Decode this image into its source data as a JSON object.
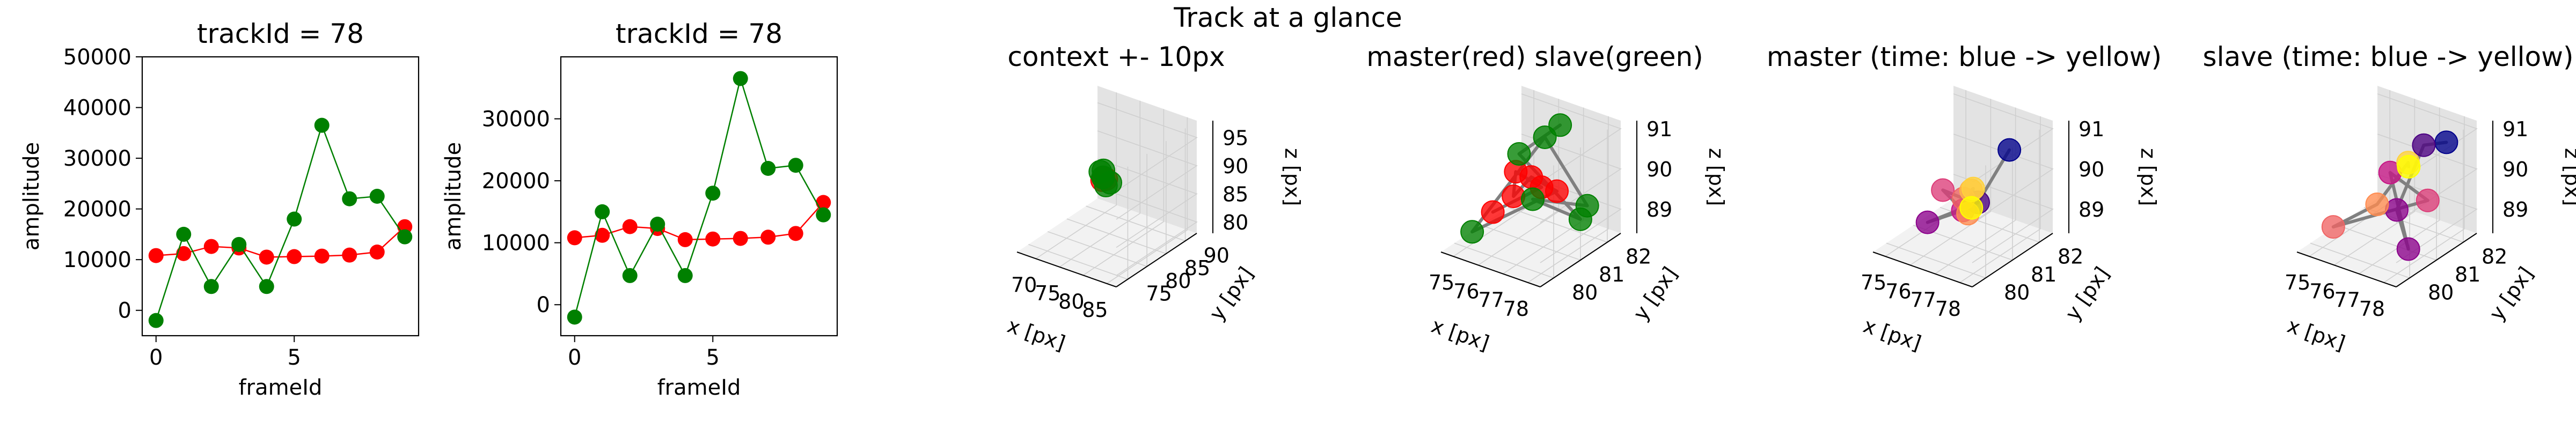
{
  "figure": {
    "suptitle": "Track at a glance"
  },
  "chart_data": [
    {
      "type": "line",
      "title": "trackId = 78",
      "xlabel": "frameId",
      "ylabel": "amplitude",
      "xlim": [
        -0.5,
        9.5
      ],
      "ylim": [
        -5000,
        50000
      ],
      "xticks": [
        0,
        5
      ],
      "yticks": [
        0,
        10000,
        20000,
        30000,
        40000,
        50000
      ],
      "x": [
        0,
        1,
        2,
        3,
        4,
        5,
        6,
        7,
        8,
        9
      ],
      "series": [
        {
          "color": "#ff0000",
          "values": [
            10800,
            11200,
            12600,
            12300,
            10500,
            10600,
            10700,
            10900,
            11500,
            16500
          ]
        },
        {
          "color": "#008000",
          "values": [
            -2000,
            15000,
            4700,
            13000,
            4700,
            18000,
            36500,
            22000,
            22500,
            14500
          ]
        }
      ]
    },
    {
      "type": "line",
      "title": "trackId = 78",
      "xlabel": "frameId",
      "ylabel": "amplitude",
      "xlim": [
        -0.5,
        9.5
      ],
      "ylim": [
        -5000,
        40000
      ],
      "xticks": [
        0,
        5
      ],
      "yticks": [
        0,
        10000,
        20000,
        30000
      ],
      "x": [
        0,
        1,
        2,
        3,
        4,
        5,
        6,
        7,
        8,
        9
      ],
      "series": [
        {
          "color": "#ff0000",
          "values": [
            10800,
            11200,
            12600,
            12300,
            10500,
            10600,
            10700,
            10900,
            11500,
            16500
          ]
        },
        {
          "color": "#008000",
          "values": [
            -2000,
            15000,
            4700,
            13000,
            4700,
            18000,
            36500,
            22000,
            22500,
            14500
          ]
        }
      ]
    },
    {
      "type": "scatter3d",
      "title": "context +- 10px",
      "xlabel": "x [px]",
      "ylabel": "y [px]",
      "zlabel": "z [px]",
      "xlim": [
        66,
        87
      ],
      "ylim": [
        72,
        93
      ],
      "zlim": [
        78,
        98
      ],
      "xticks": [
        70,
        75,
        80,
        85
      ],
      "yticks": [
        75,
        80,
        85,
        90
      ],
      "zticks": [
        80,
        85,
        90,
        95
      ],
      "path_color": "#808080",
      "points": [
        {
          "x": 76.3,
          "y": 81.5,
          "z": 89.5,
          "color": "#ff0000"
        },
        {
          "x": 76.8,
          "y": 81.2,
          "z": 90.2,
          "color": "#ff0000"
        },
        {
          "x": 77.0,
          "y": 81.7,
          "z": 89.8,
          "color": "#ff0000"
        },
        {
          "x": 75.6,
          "y": 81.9,
          "z": 90.6,
          "color": "#008000"
        },
        {
          "x": 77.6,
          "y": 80.9,
          "z": 89.2,
          "color": "#008000"
        },
        {
          "x": 76.1,
          "y": 82.1,
          "z": 90.9,
          "color": "#008000"
        },
        {
          "x": 77.4,
          "y": 82.3,
          "z": 89.0,
          "color": "#008000"
        },
        {
          "x": 76.9,
          "y": 81.0,
          "z": 90.4,
          "color": "#008000"
        }
      ]
    },
    {
      "type": "scatter3d",
      "title": "master(red) slave(green)",
      "xlabel": "x [px]",
      "ylabel": "y [px]",
      "zlabel": "z [px]",
      "xlim": [
        74.5,
        78.5
      ],
      "ylim": [
        79.5,
        82.5
      ],
      "zlim": [
        88.4,
        91.2
      ],
      "xticks": [
        75,
        76,
        77,
        78
      ],
      "yticks": [
        80,
        81,
        82
      ],
      "zticks": [
        89,
        90,
        91
      ],
      "path_color": "#808080",
      "points": [
        {
          "x": 75.4,
          "y": 80.6,
          "z": 89.1,
          "color": "#ff0000"
        },
        {
          "x": 76.5,
          "y": 81.4,
          "z": 89.6,
          "color": "#ff0000"
        },
        {
          "x": 76.0,
          "y": 80.9,
          "z": 90.1,
          "color": "#ff0000"
        },
        {
          "x": 75.8,
          "y": 81.0,
          "z": 89.4,
          "color": "#ff0000"
        },
        {
          "x": 76.3,
          "y": 81.2,
          "z": 89.9,
          "color": "#ff0000"
        },
        {
          "x": 76.9,
          "y": 81.6,
          "z": 89.5,
          "color": "#ff0000"
        },
        {
          "x": 75.0,
          "y": 80.2,
          "z": 88.7,
          "color": "#008000"
        },
        {
          "x": 76.2,
          "y": 81.8,
          "z": 90.6,
          "color": "#008000"
        },
        {
          "x": 77.8,
          "y": 81.9,
          "z": 89.2,
          "color": "#008000"
        },
        {
          "x": 76.9,
          "y": 80.7,
          "z": 89.7,
          "color": "#008000"
        },
        {
          "x": 77.2,
          "y": 82.2,
          "z": 88.6,
          "color": "#008000"
        },
        {
          "x": 75.7,
          "y": 81.3,
          "z": 90.3,
          "color": "#008000"
        },
        {
          "x": 76.6,
          "y": 82.0,
          "z": 90.9,
          "color": "#008000"
        }
      ]
    },
    {
      "type": "scatter3d",
      "title": "master (time: blue -> yellow)",
      "xlabel": "x [px]",
      "ylabel": "y [px]",
      "zlabel": "z [px]",
      "xlim": [
        74.5,
        78.5
      ],
      "ylim": [
        79.5,
        82.5
      ],
      "zlim": [
        88.4,
        91.2
      ],
      "xticks": [
        75,
        76,
        77,
        78
      ],
      "yticks": [
        80,
        81,
        82
      ],
      "zticks": [
        89,
        90,
        91
      ],
      "path_color": "#808080",
      "points": [
        {
          "x": 77.4,
          "y": 81.9,
          "z": 90.5,
          "color": "#00008b"
        },
        {
          "x": 76.9,
          "y": 81.2,
          "z": 89.4,
          "color": "#4b0082"
        },
        {
          "x": 75.4,
          "y": 80.7,
          "z": 88.8,
          "color": "#8b008b"
        },
        {
          "x": 76.5,
          "y": 81.0,
          "z": 89.2,
          "color": "#c71585"
        },
        {
          "x": 75.8,
          "y": 80.9,
          "z": 89.6,
          "color": "#dc3c78"
        },
        {
          "x": 76.2,
          "y": 81.3,
          "z": 89.3,
          "color": "#f06464"
        },
        {
          "x": 76.6,
          "y": 81.1,
          "z": 89.1,
          "color": "#ff8c50"
        },
        {
          "x": 76.4,
          "y": 81.4,
          "z": 89.5,
          "color": "#ffb446"
        },
        {
          "x": 76.7,
          "y": 81.2,
          "z": 89.7,
          "color": "#ffd23c"
        },
        {
          "x": 76.3,
          "y": 81.5,
          "z": 89.0,
          "color": "#ffff00"
        }
      ]
    },
    {
      "type": "scatter3d",
      "title": "slave (time: blue -> yellow)",
      "xlabel": "x [px]",
      "ylabel": "y [px]",
      "zlabel": "z [px]",
      "xlim": [
        74.5,
        78.5
      ],
      "ylim": [
        79.5,
        82.5
      ],
      "zlim": [
        88.4,
        91.2
      ],
      "xticks": [
        75,
        76,
        77,
        78
      ],
      "yticks": [
        80,
        81,
        82
      ],
      "zticks": [
        89,
        90,
        91
      ],
      "path_color": "#808080",
      "points": [
        {
          "x": 77.6,
          "y": 82.2,
          "z": 90.6,
          "color": "#00008b"
        },
        {
          "x": 76.8,
          "y": 82.1,
          "z": 90.4,
          "color": "#4b0082"
        },
        {
          "x": 76.9,
          "y": 81.0,
          "z": 89.3,
          "color": "#8b008b"
        },
        {
          "x": 77.8,
          "y": 80.6,
          "z": 88.7,
          "color": "#8b008b"
        },
        {
          "x": 76.2,
          "y": 81.4,
          "z": 89.9,
          "color": "#c71585"
        },
        {
          "x": 77.5,
          "y": 81.6,
          "z": 89.4,
          "color": "#dc3c78"
        },
        {
          "x": 75.1,
          "y": 80.3,
          "z": 88.8,
          "color": "#f06464"
        },
        {
          "x": 76.0,
          "y": 81.1,
          "z": 89.2,
          "color": "#ff8c50"
        },
        {
          "x": 76.6,
          "y": 81.7,
          "z": 90.1,
          "color": "#ffd23c"
        },
        {
          "x": 76.3,
          "y": 82.0,
          "z": 89.8,
          "color": "#ffff00"
        }
      ]
    }
  ]
}
